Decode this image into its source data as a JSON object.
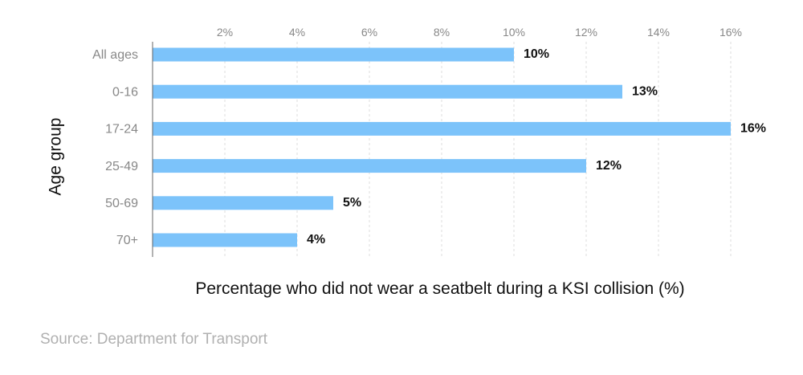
{
  "chart_data": {
    "type": "bar",
    "orientation": "horizontal",
    "categories": [
      "All ages",
      "0-16",
      "17-24",
      "25-49",
      "50-69",
      "70+"
    ],
    "values": [
      10,
      13,
      16,
      12,
      5,
      4
    ],
    "value_labels": [
      "10%",
      "13%",
      "16%",
      "12%",
      "5%",
      "4%"
    ],
    "xlabel": "Percentage who did not wear a seatbelt during a KSI collision (%)",
    "ylabel": "Age group",
    "xlim": [
      0,
      16
    ],
    "x_ticks": [
      2,
      4,
      6,
      8,
      10,
      12,
      14,
      16
    ],
    "x_tick_labels": [
      "2%",
      "4%",
      "6%",
      "8%",
      "10%",
      "12%",
      "14%",
      "16%"
    ],
    "grid": "vertical-dashed",
    "bar_color": "#7cc3fa"
  },
  "source": "Source: Department for Transport"
}
